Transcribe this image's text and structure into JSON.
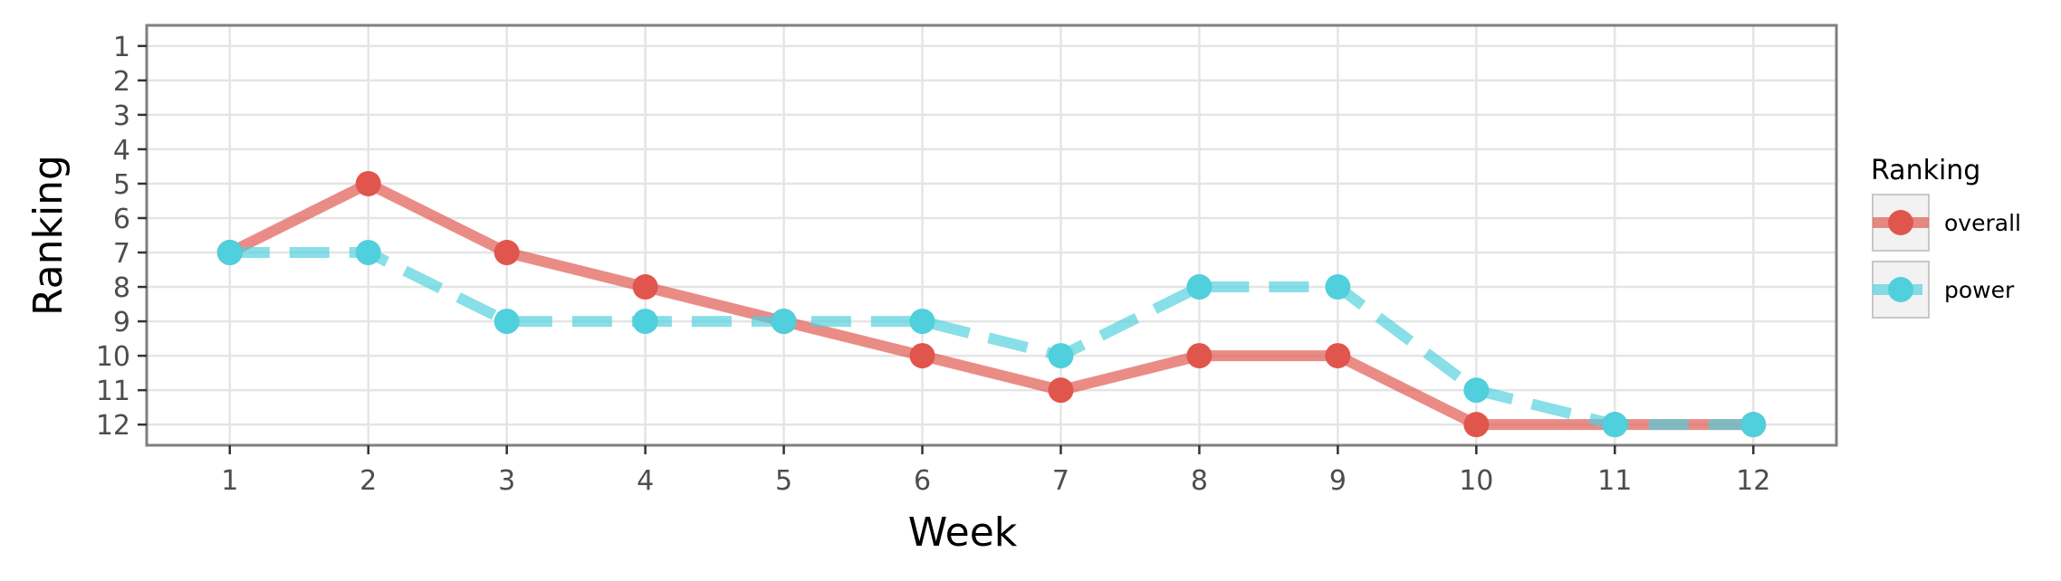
{
  "chart_data": {
    "type": "line",
    "xlabel": "Week",
    "ylabel": "Ranking",
    "x": [
      1,
      2,
      3,
      4,
      5,
      6,
      7,
      8,
      9,
      10,
      11,
      12
    ],
    "xlim": [
      0.4,
      12.6
    ],
    "ylim": [
      12.6,
      0.4
    ],
    "y_reversed": true,
    "xticks": [
      1,
      2,
      3,
      4,
      5,
      6,
      7,
      8,
      9,
      10,
      11,
      12
    ],
    "yticks": [
      1,
      2,
      3,
      4,
      5,
      6,
      7,
      8,
      9,
      10,
      11,
      12
    ],
    "grid": true,
    "legend": {
      "title": "Ranking",
      "position": "right"
    },
    "series": [
      {
        "name": "overall",
        "color": "#E0564C",
        "line_style": "solid",
        "values": [
          7,
          5,
          7,
          8,
          9,
          10,
          11,
          10,
          10,
          12,
          12,
          12
        ]
      },
      {
        "name": "power",
        "color": "#4FD0DC",
        "line_style": "dashed",
        "values": [
          7,
          7,
          9,
          9,
          9,
          9,
          10,
          8,
          8,
          11,
          12,
          12
        ]
      }
    ]
  }
}
